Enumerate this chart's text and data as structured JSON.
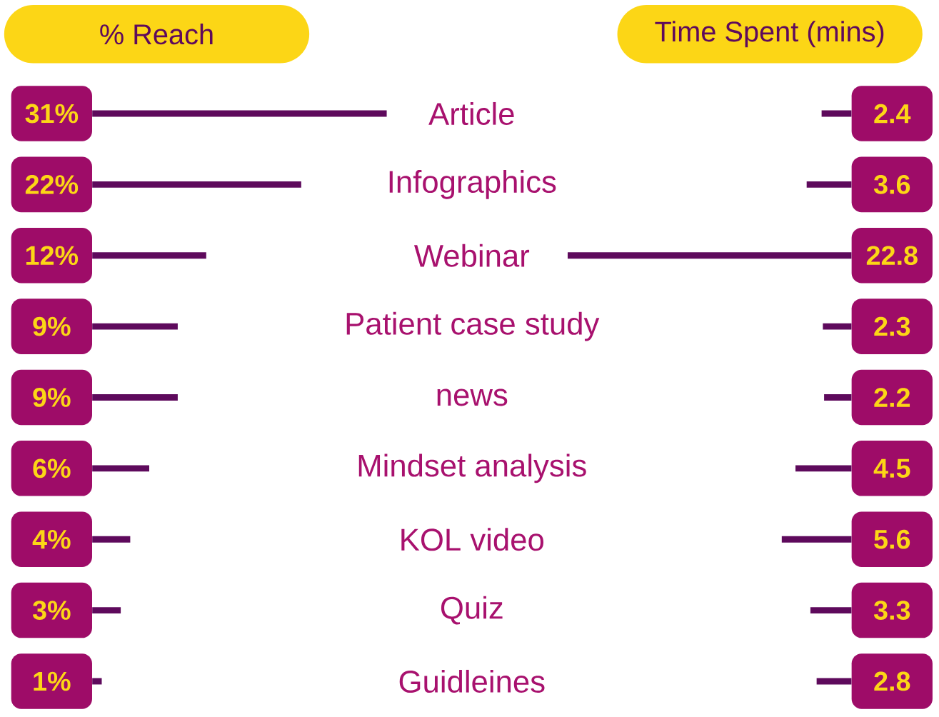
{
  "chart_data": [
    {
      "type": "bar",
      "orientation": "horizontal",
      "title": "% Reach",
      "color": "#5e0a5c",
      "xlim": [
        0,
        31
      ],
      "tick_labels": "y",
      "categories": [
        "Article",
        "Infographics",
        "Webinar",
        "Patient case study",
        "news",
        "Mindset analysis",
        "KOL video",
        "Quiz",
        "Guidleines"
      ],
      "values": [
        31,
        22,
        12,
        9,
        9,
        6,
        4,
        3,
        1
      ],
      "value_labels": [
        "31%",
        "22%",
        "12%",
        "9%",
        "9%",
        "6%",
        "4%",
        "3%",
        "1%"
      ]
    },
    {
      "type": "bar",
      "orientation": "horizontal",
      "title": "Time Spent (mins)",
      "color": "#5e0a5c",
      "xlim": [
        22.8,
        0
      ],
      "categories": [
        null,
        null,
        null,
        null,
        null,
        null,
        null,
        null,
        null
      ],
      "values": [
        2.4,
        3.6,
        22.8,
        2.3,
        2.2,
        4.5,
        5.6,
        3.3,
        2.8
      ],
      "data_labels": true
    }
  ]
}
